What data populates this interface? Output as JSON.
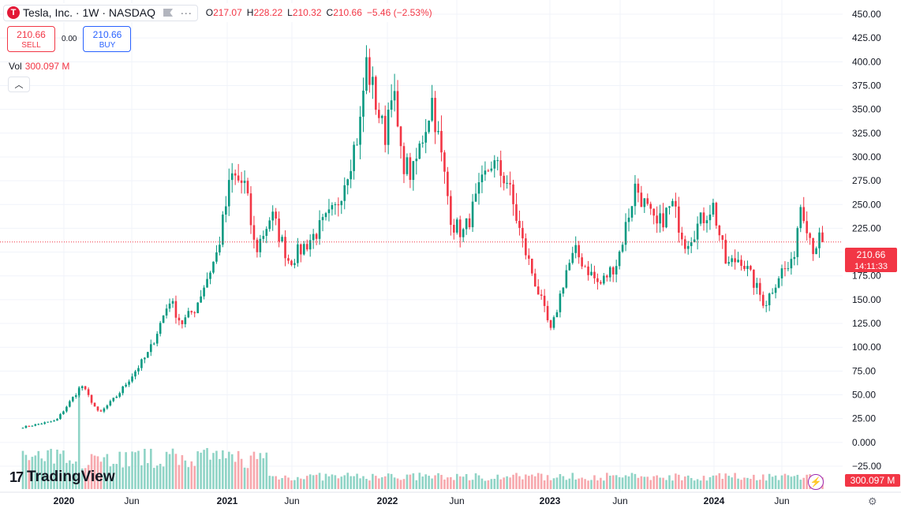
{
  "header": {
    "logo_letter": "T",
    "title": "Tesla, Inc. · 1W · NASDAQ",
    "open_label": "O",
    "open": "217.07",
    "high_label": "H",
    "high": "228.22",
    "low_label": "L",
    "low": "210.32",
    "close_label": "C",
    "close": "210.66",
    "change": "−5.46 (−2.53%)",
    "more": "∙∙∙"
  },
  "trade": {
    "sell_price": "210.66",
    "sell_label": "SELL",
    "spread": "0.00",
    "buy_price": "210.66",
    "buy_label": "BUY"
  },
  "volume_legend": {
    "label": "Vol",
    "value": "300.097 M"
  },
  "collapse_icon": "chevron-up-icon",
  "branding": {
    "name": "TradingView"
  },
  "colors": {
    "up": "#089981",
    "down": "#f23645",
    "up_vol": "#8fd4c6",
    "down_vol": "#f7a8ad",
    "grid": "#f0f3fa"
  },
  "chart_data": {
    "type": "candlestick",
    "interval": "1W",
    "y_axis": {
      "ticks": [
        "450.00",
        "425.00",
        "400.00",
        "375.00",
        "350.00",
        "325.00",
        "300.00",
        "275.00",
        "250.00",
        "225.00",
        "200.00",
        "175.00",
        "150.00",
        "125.00",
        "100.00",
        "75.00",
        "50.00",
        "25.00",
        "0.000",
        "−25.00"
      ],
      "range": [
        -25,
        450
      ]
    },
    "x_axis": {
      "ticks": [
        "2020",
        "Jun",
        "2021",
        "Jun",
        "2022",
        "Jun",
        "2023",
        "Jun",
        "2024",
        "Jun"
      ]
    },
    "last_price": {
      "value": 210.66,
      "label": "210.66",
      "countdown": "14:11:33"
    },
    "last_volume": {
      "label": "300.097 M"
    },
    "price_path": [
      [
        "2019-10-01",
        16
      ],
      [
        "2019-12-15",
        23
      ],
      [
        "2020-02-10",
        60
      ],
      [
        "2020-03-20",
        30
      ],
      [
        "2020-05-01",
        50
      ],
      [
        "2020-07-10",
        95
      ],
      [
        "2020-08-25",
        150
      ],
      [
        "2020-09-20",
        125
      ],
      [
        "2020-10-20",
        140
      ],
      [
        "2020-12-10",
        200
      ],
      [
        "2021-01-10",
        280
      ],
      [
        "2021-02-10",
        270
      ],
      [
        "2021-03-05",
        200
      ],
      [
        "2021-04-10",
        240
      ],
      [
        "2021-05-20",
        190
      ],
      [
        "2021-06-30",
        210
      ],
      [
        "2021-09-01",
        245
      ],
      [
        "2021-10-25",
        330
      ],
      [
        "2021-11-08",
        400
      ],
      [
        "2021-12-20",
        320
      ],
      [
        "2022-01-05",
        380
      ],
      [
        "2022-01-25",
        300
      ],
      [
        "2022-02-20",
        280
      ],
      [
        "2022-04-05",
        360
      ],
      [
        "2022-05-20",
        230
      ],
      [
        "2022-06-15",
        220
      ],
      [
        "2022-08-15",
        295
      ],
      [
        "2022-09-20",
        275
      ],
      [
        "2022-10-25",
        210
      ],
      [
        "2022-12-28",
        115
      ],
      [
        "2023-01-30",
        180
      ],
      [
        "2023-02-20",
        200
      ],
      [
        "2023-04-15",
        165
      ],
      [
        "2023-05-25",
        190
      ],
      [
        "2023-07-05",
        270
      ],
      [
        "2023-08-20",
        225
      ],
      [
        "2023-09-25",
        250
      ],
      [
        "2023-10-25",
        210
      ],
      [
        "2023-12-25",
        250
      ],
      [
        "2024-01-25",
        185
      ],
      [
        "2024-02-25",
        195
      ],
      [
        "2024-04-20",
        145
      ],
      [
        "2024-05-25",
        180
      ],
      [
        "2024-06-20",
        185
      ],
      [
        "2024-07-10",
        255
      ],
      [
        "2024-08-05",
        205
      ],
      [
        "2024-08-25",
        215
      ],
      [
        "2024-09-02",
        210.66
      ]
    ]
  }
}
